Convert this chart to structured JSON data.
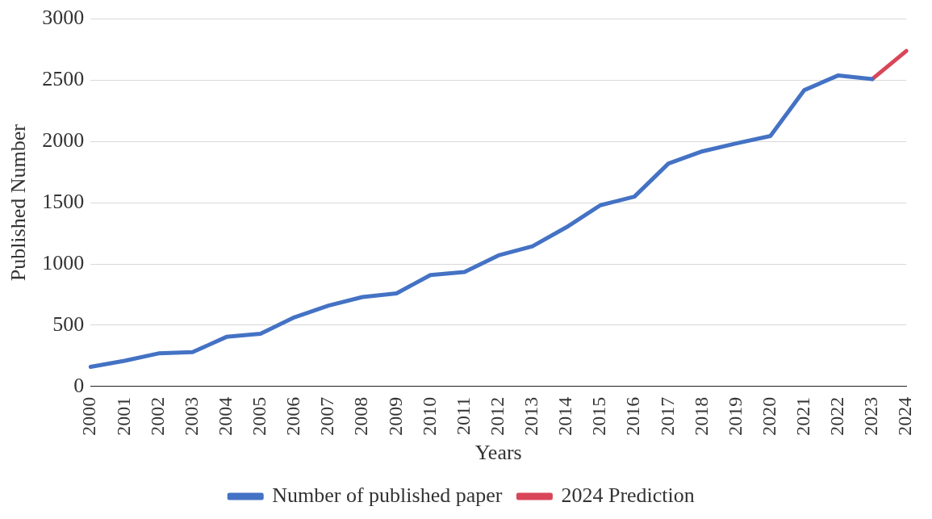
{
  "chart_data": {
    "type": "line",
    "xlabel": "Years",
    "ylabel": "Published Number",
    "categories": [
      "2000",
      "2001",
      "2002",
      "2003",
      "2004",
      "2005",
      "2006",
      "2007",
      "2008",
      "2009",
      "2010",
      "2011",
      "2012",
      "2013",
      "2014",
      "2015",
      "2016",
      "2017",
      "2018",
      "2019",
      "2020",
      "2021",
      "2022",
      "2023",
      "2024"
    ],
    "series": [
      {
        "name": "Number of published paper",
        "color": "#4472c4",
        "values": [
          160,
          210,
          270,
          280,
          405,
          430,
          565,
          660,
          730,
          760,
          910,
          935,
          1070,
          1145,
          1300,
          1480,
          1550,
          1820,
          1920,
          1985,
          2045,
          2420,
          2540,
          2510,
          null
        ]
      },
      {
        "name": "2024 Prediction",
        "color": "#d9465a",
        "values": [
          null,
          null,
          null,
          null,
          null,
          null,
          null,
          null,
          null,
          null,
          null,
          null,
          null,
          null,
          null,
          null,
          null,
          null,
          null,
          null,
          null,
          null,
          null,
          2510,
          2740
        ]
      }
    ],
    "ylim": [
      0,
      3000
    ],
    "yticks": [
      0,
      500,
      1000,
      1500,
      2000,
      2500,
      3000
    ],
    "grid": "y",
    "legend": "bottom",
    "marker": "none",
    "line_style": "solid"
  }
}
